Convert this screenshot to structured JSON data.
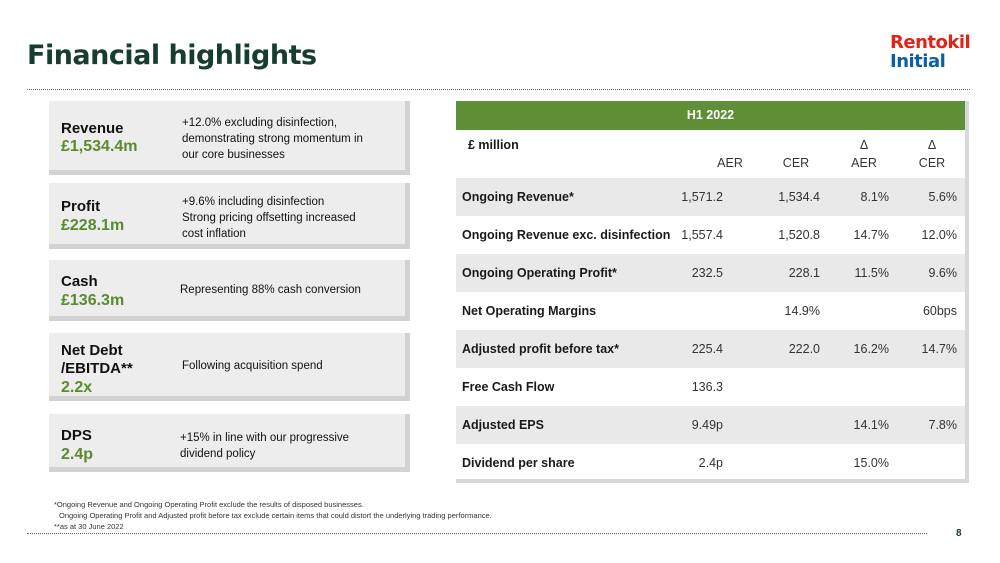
{
  "title": "Financial highlights",
  "logo": {
    "line1": "Rentokil",
    "line2": "Initial"
  },
  "cards": [
    {
      "label": "Revenue",
      "value": "£1,534.4m",
      "desc": [
        "+12.0% excluding disinfection,",
        "demonstrating strong momentum in",
        "our core businesses"
      ]
    },
    {
      "label": "Profit",
      "value": "£228.1m",
      "desc": [
        "+9.6% including disinfection",
        "Strong pricing offsetting increased",
        "cost inflation"
      ]
    },
    {
      "label": "Cash",
      "value": "£136.3m",
      "desc": [
        "Representing 88% cash conversion"
      ]
    },
    {
      "label1": "Net Debt",
      "label2": "/EBITDA**",
      "value": "2.2x",
      "desc": [
        "Following acquisition spend"
      ]
    },
    {
      "label": "DPS",
      "value": "2.4p",
      "desc": [
        "+15% in line with our progressive",
        "dividend policy"
      ]
    }
  ],
  "table": {
    "header": "H1 2022",
    "unit": "£ million",
    "columns": [
      {
        "top": "",
        "bottom": "AER"
      },
      {
        "top": "",
        "bottom": "CER"
      },
      {
        "top": "Δ",
        "bottom": "AER"
      },
      {
        "top": "Δ",
        "bottom": "CER"
      }
    ],
    "rows": [
      {
        "label": "Ongoing Revenue*",
        "values": [
          "1,571.2",
          "1,534.4",
          "8.1%",
          "5.6%"
        ]
      },
      {
        "label": "Ongoing Revenue exc. disinfection",
        "values": [
          "1,557.4",
          "1,520.8",
          "14.7%",
          "12.0%"
        ]
      },
      {
        "label": "Ongoing Operating Profit*",
        "values": [
          "232.5",
          "228.1",
          "11.5%",
          "9.6%"
        ]
      },
      {
        "label": "Net Operating Margins",
        "values": [
          "",
          "14.9%",
          "",
          "60bps"
        ]
      },
      {
        "label": "Adjusted profit before tax*",
        "values": [
          "225.4",
          "222.0",
          "16.2%",
          "14.7%"
        ]
      },
      {
        "label": "Free Cash Flow",
        "values": [
          "136.3",
          "",
          "",
          ""
        ]
      },
      {
        "label": "Adjusted EPS",
        "values": [
          "9.49p",
          "",
          "14.1%",
          "7.8%"
        ]
      },
      {
        "label": "Dividend per share",
        "values": [
          "2.4p",
          "",
          "15.0%",
          ""
        ]
      }
    ]
  },
  "footnotes": [
    "*Ongoing Revenue and Ongoing Operating Profit exclude the results of disposed businesses.",
    "Ongoing Operating Profit and Adjusted profit before tax exclude certain items that could distort the underlying trading performance.",
    "**as at 30 June 2022"
  ],
  "page_number": "8"
}
